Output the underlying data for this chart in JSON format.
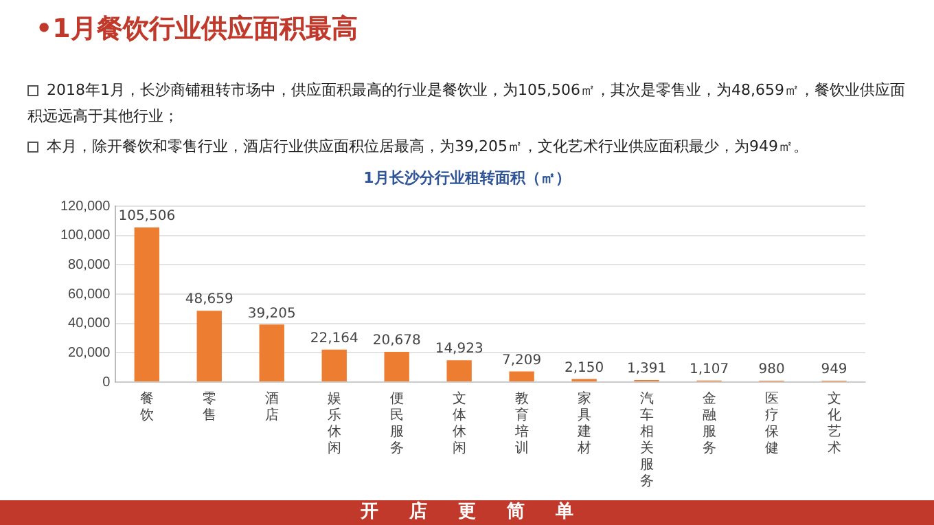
{
  "chart_data": {
    "type": "bar",
    "title": "•1月餐饮行业供应面积最高",
    "subtitle": "1月长沙分行业租转面积（㎡）",
    "annotations": [
      "2018年1月，长沙商铺租转市场中，供应面积最高的行业是餐饮业，为105,506㎡，其次是零售业，为48,659㎡，餐饮业供应面积远远高于其他行业；",
      "本月，除开餐饮和零售行业，酒店行业供应面积位居最高，为39,205㎡，文化艺术行业供应面积最少，为949㎡。",
      "开 店 更 简 单"
    ],
    "categories": [
      "餐饮",
      "零售",
      "酒店",
      "娱乐休闲",
      "便民服务",
      "文体休闲",
      "教育培训",
      "家具建材",
      "汽车相关服务",
      "金融服务",
      "医疗保健",
      "文化艺术"
    ],
    "values": [
      105506,
      48659,
      39205,
      22164,
      20678,
      14923,
      7209,
      2150,
      1391,
      1107,
      980,
      949
    ],
    "value_labels": [
      "105,506",
      "48,659",
      "39,205",
      "22,164",
      "20,678",
      "14,923",
      "7,209",
      "2,150",
      "1,391",
      "1,107",
      "980",
      "949"
    ],
    "color": "#ed7d31",
    "ylim": [
      0,
      120000
    ],
    "yticks": [
      0,
      {
        "value": 20000,
        "label": "20,000"
      },
      {
        "value": 40000,
        "label": "40,000"
      },
      {
        "value": 60000,
        "label": "60,000"
      },
      {
        "value": 80000,
        "label": "80,000"
      },
      {
        "value": 100000,
        "label": "100,000"
      },
      {
        "value": 120000,
        "label": "120,000"
      }
    ],
    "grid": "y",
    "legend": false
  }
}
